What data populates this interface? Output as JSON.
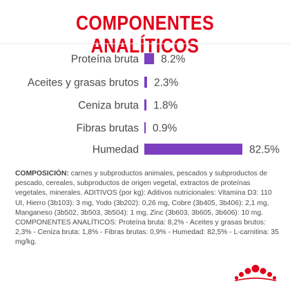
{
  "title": "COMPONENTES ANALÍTICOS",
  "colors": {
    "title": "#e2001a",
    "bar": "#7b3fbf",
    "text": "#4a4a4a",
    "logo": "#e2001a"
  },
  "chart_data": {
    "type": "bar",
    "orientation": "horizontal",
    "categories": [
      "Proteína bruta",
      "Aceites y grasas brutos",
      "Ceniza bruta",
      "Fibras brutas",
      "Humedad"
    ],
    "values": [
      8.2,
      2.3,
      1.8,
      0.9,
      82.5
    ],
    "value_labels": [
      "8.2%",
      "2.3%",
      "1.8%",
      "0.9%",
      "82.5%"
    ],
    "title": "COMPONENTES ANALÍTICOS",
    "xlim": [
      0,
      82.5
    ],
    "grid": false,
    "legend": "none"
  },
  "composition": {
    "heading": "COMPOSICIÓN:",
    "text": " carnes y subproductos animales, pescados y subproductos de pescado, cereales, subproductos de origen vegetal, extractos de proteínas vegetales, minerales. ADITIVOS (por kg): Aditivos nutricionales: Vitamina D3: 110 UI, Hierro (3b103): 3 mg, Yodo (3b202): 0,26 mg, Cobre (3b405, 3b406): 2,1 mg, Manganeso (3b502, 3b503, 3b504): 1 mg, Zinc (3b603, 3b605, 3b606): 10 mg."
  },
  "analytical": {
    "text": "COMPONENTES ANALÍTICOS: Proteína bruta: 8,2% - Aceites y grasas brutos: 2,3% - Ceniza bruta: 1,8% - Fibras brutas: 0,9% - Humedad: 82,5% - L-carnitina: 35 mg/kg."
  },
  "logo": {
    "icon": "crown-icon"
  }
}
